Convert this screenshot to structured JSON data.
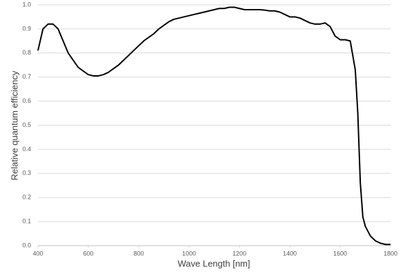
{
  "chart_data": {
    "type": "line",
    "x_label": "Wave Length [nm]",
    "y_label": "Relative quantum efficiency",
    "xlim": [
      400,
      1800
    ],
    "xticks": [
      400,
      600,
      800,
      1000,
      1200,
      1400,
      1600,
      1800
    ],
    "ylim": [
      0,
      1
    ],
    "yticks": [
      {
        "value": 0,
        "label": "0.0"
      },
      0.1,
      0.2,
      0.3,
      0.4,
      0.5,
      0.6,
      0.7,
      0.8,
      0.9,
      {
        "value": 1,
        "label": "1.0"
      }
    ],
    "grid": true,
    "x": [
      400,
      420,
      440,
      460,
      480,
      500,
      520,
      540,
      560,
      580,
      600,
      620,
      640,
      660,
      680,
      700,
      720,
      740,
      760,
      780,
      800,
      820,
      840,
      860,
      880,
      900,
      920,
      940,
      960,
      980,
      1000,
      1020,
      1040,
      1060,
      1080,
      1100,
      1120,
      1140,
      1160,
      1180,
      1200,
      1220,
      1240,
      1260,
      1280,
      1300,
      1320,
      1340,
      1360,
      1380,
      1400,
      1420,
      1440,
      1460,
      1480,
      1500,
      1520,
      1540,
      1560,
      1580,
      1600,
      1620,
      1640,
      1660,
      1670,
      1680,
      1690,
      1700,
      1720,
      1740,
      1760,
      1780,
      1800
    ],
    "series": [
      {
        "color": "#000000",
        "values": [
          0.81,
          0.9,
          0.92,
          0.92,
          0.9,
          0.85,
          0.8,
          0.77,
          0.74,
          0.725,
          0.71,
          0.705,
          0.705,
          0.71,
          0.72,
          0.735,
          0.75,
          0.77,
          0.79,
          0.81,
          0.83,
          0.85,
          0.865,
          0.88,
          0.9,
          0.915,
          0.93,
          0.94,
          0.945,
          0.95,
          0.955,
          0.96,
          0.965,
          0.97,
          0.975,
          0.98,
          0.985,
          0.985,
          0.99,
          0.99,
          0.985,
          0.98,
          0.98,
          0.98,
          0.98,
          0.978,
          0.975,
          0.975,
          0.97,
          0.96,
          0.95,
          0.95,
          0.945,
          0.935,
          0.925,
          0.92,
          0.92,
          0.925,
          0.91,
          0.87,
          0.855,
          0.855,
          0.85,
          0.73,
          0.55,
          0.26,
          0.12,
          0.08,
          0.04,
          0.02,
          0.01,
          0.005,
          0.005
        ]
      }
    ]
  }
}
